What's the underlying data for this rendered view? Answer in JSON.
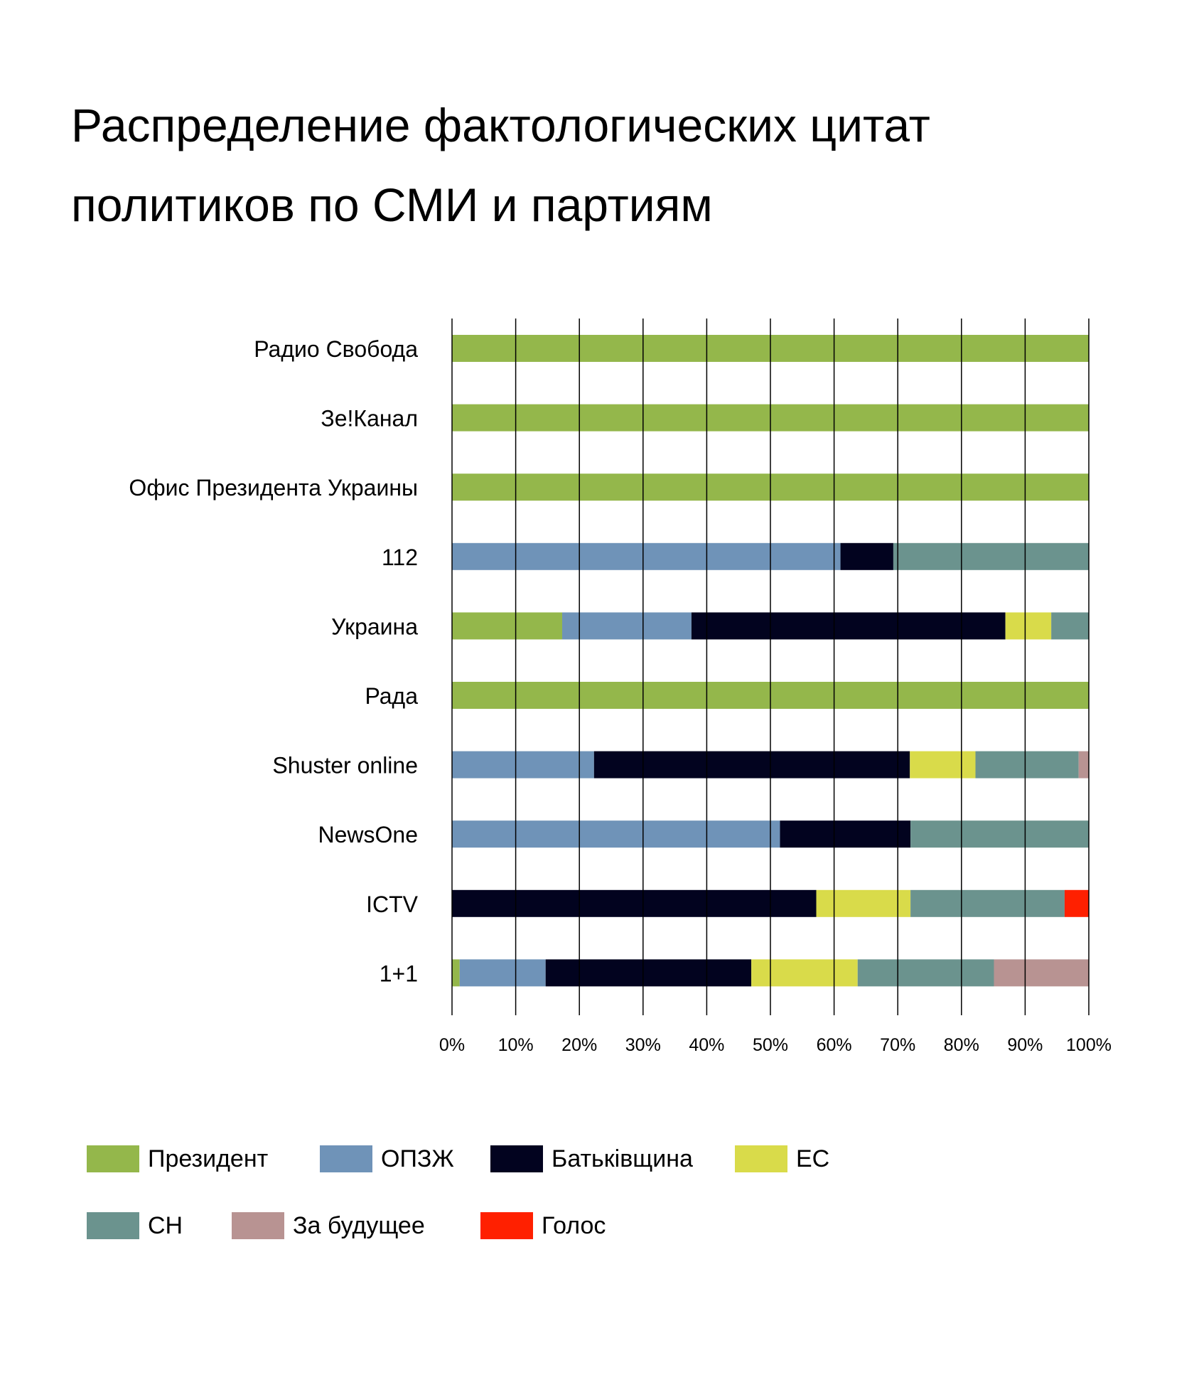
{
  "title_line1": "Распределение фактологических цитат",
  "title_line2": "политиков по СМИ и партиям",
  "chart_data": {
    "type": "bar",
    "orientation": "horizontal",
    "stacked": true,
    "normalized": true,
    "categories": [
      "Радио Свобода",
      "Зе!Канал",
      "Офис Президента Украины",
      "112",
      "Украина",
      "Рада",
      "Shuster online",
      "NewsOne",
      "ICTV",
      "1+1"
    ],
    "series": [
      {
        "name": "Президент",
        "color": "#94b74b",
        "values": [
          100,
          100,
          100,
          0,
          17.3,
          100,
          0,
          0,
          0,
          1.2
        ]
      },
      {
        "name": "ОПЗЖ",
        "color": "#6f93b8",
        "values": [
          0,
          0,
          0,
          61,
          20.3,
          0,
          22.3,
          51.5,
          0,
          13.5
        ]
      },
      {
        "name": "Батьківщина",
        "color": "#02031f",
        "values": [
          0,
          0,
          0,
          8.3,
          49.3,
          0,
          49.6,
          20.5,
          57.2,
          32.3
        ]
      },
      {
        "name": "ЕС",
        "color": "#d9db4a",
        "values": [
          0,
          0,
          0,
          0,
          7.2,
          0,
          10.3,
          0,
          14.8,
          16.7
        ]
      },
      {
        "name": "СН",
        "color": "#6b938e",
        "values": [
          0,
          0,
          0,
          30.7,
          5.9,
          0,
          16.2,
          28,
          24.2,
          21.4
        ]
      },
      {
        "name": "За будущее",
        "color": "#b89392",
        "values": [
          0,
          0,
          0,
          0,
          0,
          0,
          1.6,
          0,
          0,
          14.9
        ]
      },
      {
        "name": "Голос",
        "color": "#ff2000",
        "values": [
          0,
          0,
          0,
          0,
          0,
          0,
          0,
          0,
          3.8,
          0
        ]
      }
    ],
    "xlim": [
      0,
      100
    ],
    "x_ticks": [
      "0%",
      "10%",
      "20%",
      "30%",
      "40%",
      "50%",
      "60%",
      "70%",
      "80%",
      "90%",
      "100%"
    ],
    "grid": "vertical",
    "legend_position": "bottom"
  },
  "legend": [
    {
      "name": "Президент",
      "color": "#94b74b"
    },
    {
      "name": "ОПЗЖ",
      "color": "#6f93b8"
    },
    {
      "name": "Батьківщина",
      "color": "#02031f"
    },
    {
      "name": "ЕС",
      "color": "#d9db4a"
    },
    {
      "name": "СН",
      "color": "#6b938e"
    },
    {
      "name": "За будущее",
      "color": "#b89392"
    },
    {
      "name": "Голос",
      "color": "#ff2000"
    }
  ]
}
